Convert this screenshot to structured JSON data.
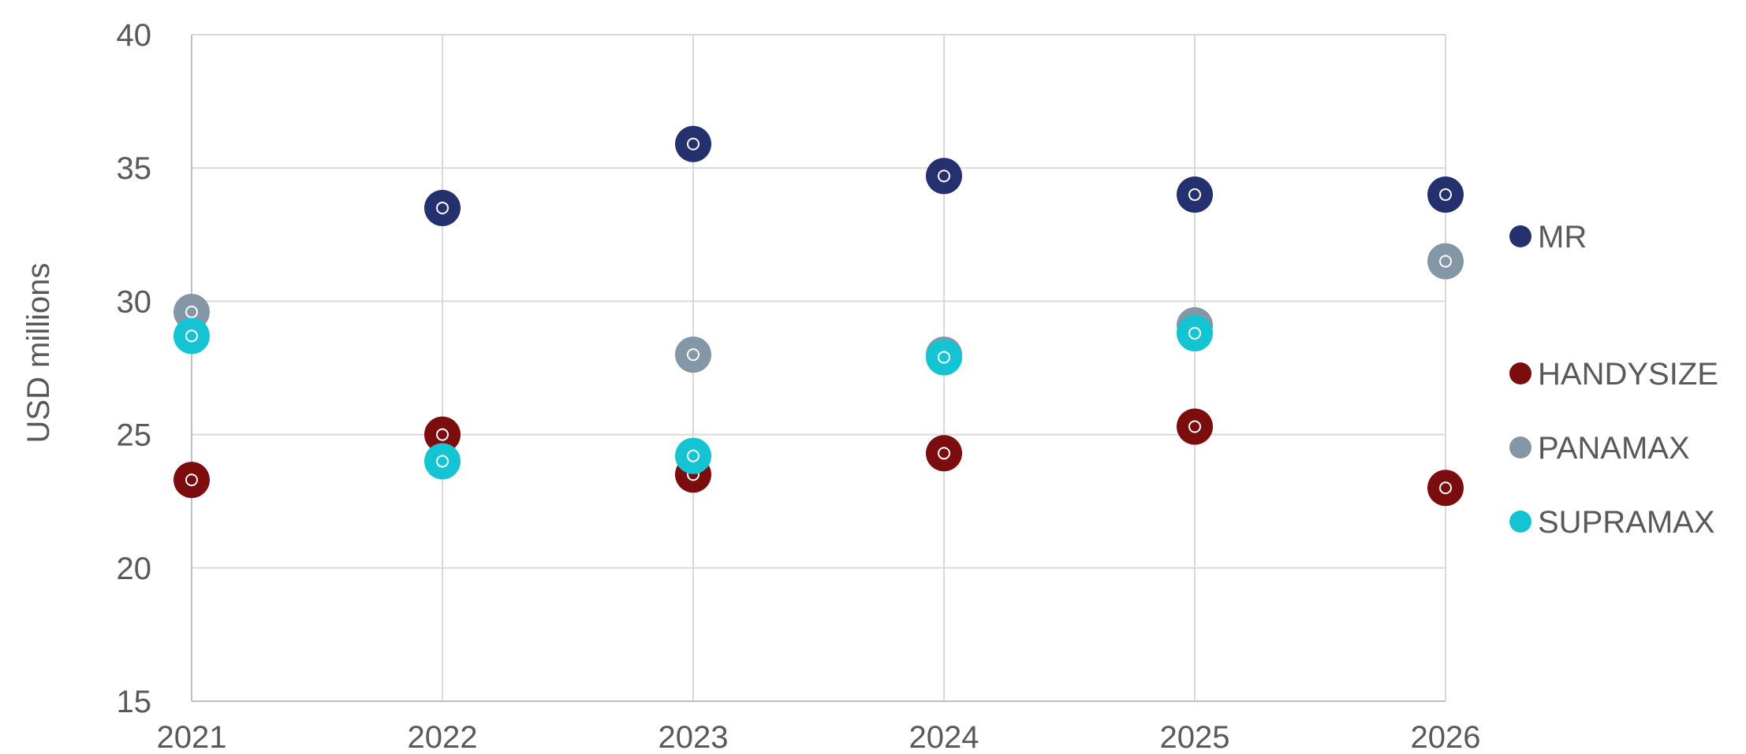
{
  "chart_data": {
    "type": "scatter",
    "title": "",
    "xlabel": "",
    "ylabel": "USD millions",
    "x": [
      2021,
      2022,
      2023,
      2024,
      2025,
      2026
    ],
    "x_tick_labels": [
      "2021",
      "2022",
      "2023",
      "2024",
      "2025",
      "2026"
    ],
    "ylim": [
      15,
      40
    ],
    "y_ticks": [
      15,
      20,
      25,
      30,
      35,
      40
    ],
    "grid": true,
    "legend_position": "right",
    "series": [
      {
        "name": "MR",
        "color": "#25306e",
        "values": [
          null,
          33.5,
          35.9,
          34.7,
          34.0,
          34.0
        ]
      },
      {
        "name": "HANDYSIZE",
        "color": "#7b0d0e",
        "values": [
          23.3,
          25.0,
          23.5,
          24.3,
          25.3,
          23.0
        ]
      },
      {
        "name": "PANAMAX",
        "color": "#8497a6",
        "values": [
          29.6,
          null,
          28.0,
          28.0,
          29.1,
          31.5
        ]
      },
      {
        "name": "SUPRAMAX",
        "color": "#14c4d2",
        "values": [
          28.7,
          24.0,
          24.2,
          27.9,
          28.8,
          null
        ]
      }
    ]
  }
}
